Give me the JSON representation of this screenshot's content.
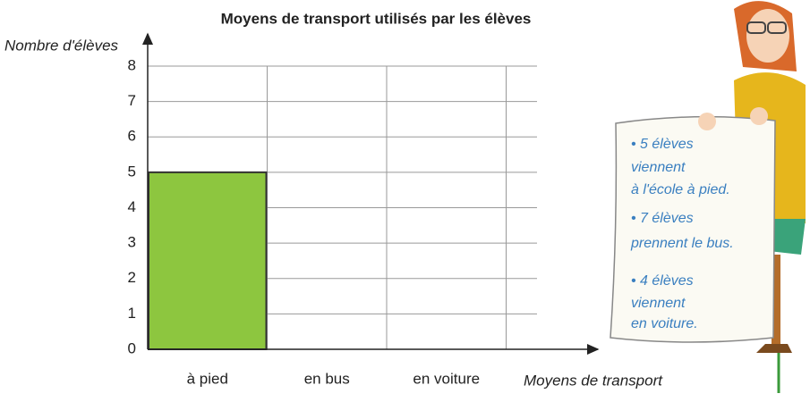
{
  "chart_data": {
    "type": "bar",
    "title": "Moyens de transport utilisés par les élèves",
    "y_label": "Nombre d'élèves",
    "x_label": "Moyens de transport",
    "categories": [
      "à pied",
      "en bus",
      "en voiture"
    ],
    "values": [
      5,
      null,
      null
    ],
    "color": "#8dc63f",
    "ylim": [
      0,
      8
    ],
    "yticks": [
      0,
      1,
      2,
      3,
      4,
      5,
      6,
      7,
      8
    ],
    "grid": true,
    "notes": [
      [
        "• 5 élèves",
        "viennent",
        "à l'école à pied."
      ],
      [
        "• 7 élèves",
        "prennent le bus."
      ],
      [
        "• 4 élèves",
        "viennent",
        "en voiture."
      ]
    ]
  }
}
